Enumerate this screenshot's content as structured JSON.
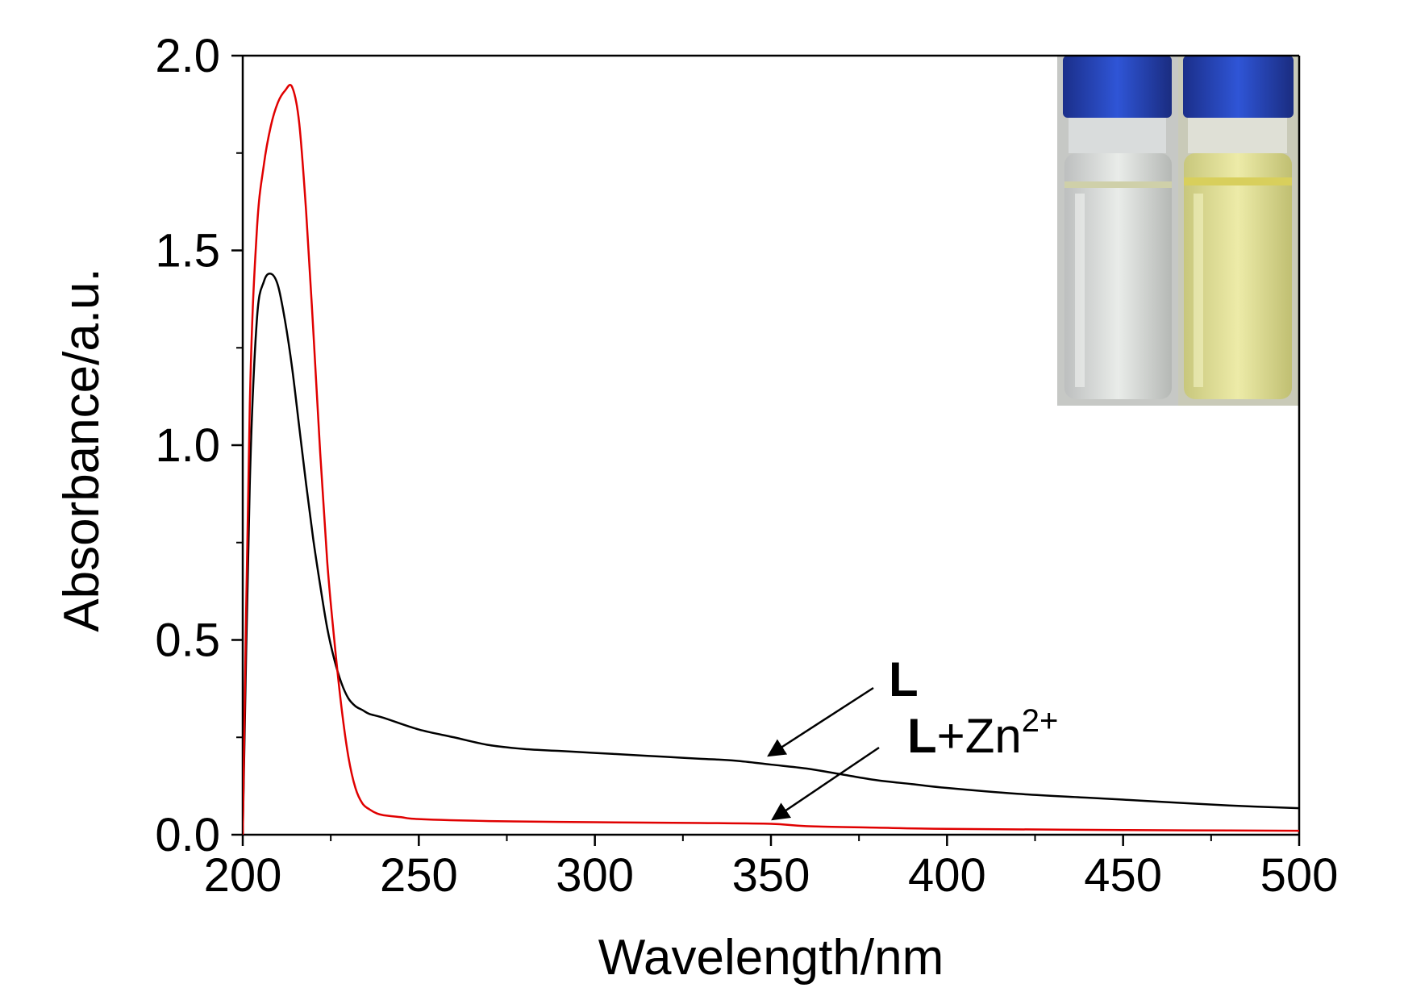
{
  "chart_data": {
    "type": "line",
    "xlabel": "Wavelength/nm",
    "ylabel": "Absorbance/a.u.",
    "xlim": [
      200,
      500
    ],
    "ylim": [
      0,
      2.0
    ],
    "x_ticks": [
      "200",
      "250",
      "300",
      "350",
      "400",
      "450",
      "500"
    ],
    "y_ticks": [
      "0.0",
      "0.5",
      "1.0",
      "1.5",
      "2.0"
    ],
    "grid": false,
    "series": [
      {
        "name": "L",
        "color": "#000000",
        "x": [
          200,
          202,
          204,
          206,
          208,
          210,
          212,
          214,
          216,
          218,
          220,
          222,
          224,
          226,
          228,
          230,
          232,
          234,
          236,
          240,
          250,
          260,
          270,
          280,
          290,
          300,
          310,
          320,
          330,
          340,
          350,
          360,
          370,
          380,
          390,
          400,
          420,
          440,
          460,
          480,
          500
        ],
        "y": [
          0.0,
          0.9,
          1.32,
          1.42,
          1.44,
          1.41,
          1.32,
          1.2,
          1.05,
          0.9,
          0.76,
          0.64,
          0.53,
          0.45,
          0.39,
          0.35,
          0.33,
          0.32,
          0.31,
          0.3,
          0.27,
          0.25,
          0.23,
          0.22,
          0.215,
          0.21,
          0.205,
          0.2,
          0.195,
          0.19,
          0.18,
          0.17,
          0.155,
          0.14,
          0.13,
          0.12,
          0.105,
          0.095,
          0.085,
          0.075,
          0.068
        ]
      },
      {
        "name": "L+Zn²⁺",
        "color": "#e00000",
        "x": [
          200,
          202,
          204,
          206,
          208,
          210,
          212,
          214,
          216,
          218,
          220,
          222,
          224,
          226,
          228,
          230,
          232,
          234,
          236,
          238,
          240,
          245,
          250,
          270,
          300,
          330,
          350,
          360,
          380,
          400,
          450,
          500
        ],
        "y": [
          0.0,
          1.1,
          1.55,
          1.72,
          1.82,
          1.88,
          1.91,
          1.92,
          1.83,
          1.6,
          1.3,
          0.98,
          0.7,
          0.5,
          0.33,
          0.2,
          0.12,
          0.08,
          0.065,
          0.055,
          0.05,
          0.045,
          0.04,
          0.035,
          0.032,
          0.03,
          0.028,
          0.022,
          0.018,
          0.015,
          0.012,
          0.01
        ]
      }
    ],
    "annotations": [
      {
        "text": "L",
        "bold": "L",
        "arrow_to": [
          350,
          0.18
        ]
      },
      {
        "text": "L+Zn2+",
        "bold": "L",
        "rest": "+Zn",
        "sup": "2+",
        "arrow_to": [
          350,
          0.03
        ]
      }
    ],
    "inset": "photo of two vials: left colorless, right yellow"
  }
}
